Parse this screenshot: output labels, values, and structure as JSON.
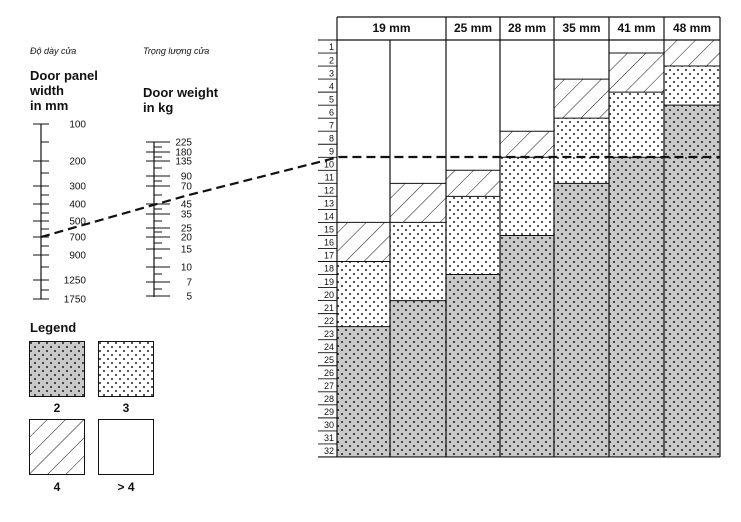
{
  "labels": {
    "width_vn": "Độ dày cửa",
    "weight_vn": "Trọng lượng cửa",
    "width_title": [
      "Door panel",
      "width",
      "in mm"
    ],
    "weight_title": [
      "Door weight",
      "in kg"
    ]
  },
  "width_scale": {
    "ticks": [
      "100",
      "200",
      "300",
      "400",
      "500",
      "700",
      "900",
      "1250",
      "1750"
    ]
  },
  "weight_scale": {
    "ticks": [
      "225",
      "180",
      "135",
      "90",
      "70",
      "45",
      "35",
      "25",
      "20",
      "15",
      "10",
      "7",
      "5"
    ]
  },
  "legend": {
    "title": "Legend",
    "items": [
      "2",
      "3",
      "4",
      "> 4"
    ]
  },
  "chart_data": {
    "type": "table",
    "columns": [
      "19 mm",
      "",
      "25 mm",
      "28 mm",
      "35 mm",
      "41 mm",
      "48 mm"
    ],
    "rows": [
      "1",
      "2",
      "3",
      "4",
      "5",
      "6",
      "7",
      "8",
      "9",
      "10",
      "11",
      "12",
      "13",
      "14",
      "15",
      "16",
      "17",
      "18",
      "19",
      "20",
      "21",
      "22",
      "23",
      "24",
      "25",
      "26",
      "27",
      "28",
      "29",
      "30",
      "31",
      "32"
    ],
    "zones": [
      {
        "grey_from": 23,
        "dots_from": 18,
        "hatch_from": 15
      },
      {
        "grey_from": 21,
        "dots_from": 15,
        "hatch_from": 12
      },
      {
        "grey_from": 19,
        "dots_from": 13,
        "hatch_from": 11
      },
      {
        "grey_from": 16,
        "dots_from": 10,
        "hatch_from": 8
      },
      {
        "grey_from": 12,
        "dots_from": 7,
        "hatch_from": 4
      },
      {
        "grey_from": 10,
        "dots_from": 5,
        "hatch_from": 2
      },
      {
        "grey_from": 6,
        "dots_from": 3,
        "hatch_from": 1
      }
    ],
    "reference_row": 10
  }
}
